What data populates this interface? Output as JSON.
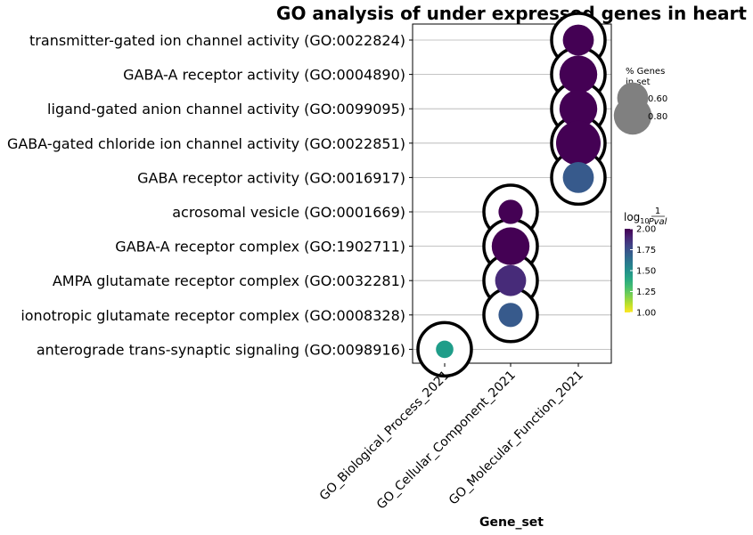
{
  "chart_data": {
    "type": "scatter",
    "title": "GO analysis of under expressed genes in heart",
    "xlabel": "Gene_set",
    "ylabel": "",
    "x_categories": [
      "GO_Biological_Process_2021",
      "GO_Cellular_Component_2021",
      "GO_Molecular_Function_2021"
    ],
    "y_categories": [
      "transmitter-gated ion channel activity (GO:0022824)",
      "GABA-A receptor activity (GO:0004890)",
      "ligand-gated anion channel activity (GO:0099095)",
      "GABA-gated chloride ion channel activity (GO:0022851)",
      "GABA receptor activity (GO:0016917)",
      "acrosomal vesicle (GO:0001669)",
      "GABA-A receptor complex (GO:1902711)",
      "AMPA glutamate receptor complex (GO:0032281)",
      "ionotropic glutamate receptor complex (GO:0008328)",
      "anterograde trans-synaptic signaling (GO:0098916)"
    ],
    "points": [
      {
        "x": "GO_Molecular_Function_2021",
        "y": "transmitter-gated ion channel activity (GO:0022824)",
        "pct_genes": 0.6,
        "color_value": 2.0,
        "highlighted": true
      },
      {
        "x": "GO_Molecular_Function_2021",
        "y": "GABA-A receptor activity (GO:0004890)",
        "pct_genes": 0.8,
        "color_value": 2.0,
        "highlighted": true
      },
      {
        "x": "GO_Molecular_Function_2021",
        "y": "ligand-gated anion channel activity (GO:0099095)",
        "pct_genes": 0.8,
        "color_value": 2.0,
        "highlighted": true
      },
      {
        "x": "GO_Molecular_Function_2021",
        "y": "GABA-gated chloride ion channel activity (GO:0022851)",
        "pct_genes": 1.0,
        "color_value": 2.0,
        "highlighted": true
      },
      {
        "x": "GO_Molecular_Function_2021",
        "y": "GABA receptor activity (GO:0016917)",
        "pct_genes": 0.6,
        "color_value": 1.72,
        "highlighted": true
      },
      {
        "x": "GO_Cellular_Component_2021",
        "y": "acrosomal vesicle (GO:0001669)",
        "pct_genes": 0.4,
        "color_value": 2.0,
        "highlighted": true
      },
      {
        "x": "GO_Cellular_Component_2021",
        "y": "GABA-A receptor complex (GO:1902711)",
        "pct_genes": 0.8,
        "color_value": 2.0,
        "highlighted": true
      },
      {
        "x": "GO_Cellular_Component_2021",
        "y": "AMPA glutamate receptor complex (GO:0032281)",
        "pct_genes": 0.6,
        "color_value": 1.88,
        "highlighted": true
      },
      {
        "x": "GO_Cellular_Component_2021",
        "y": "ionotropic glutamate receptor complex (GO:0008328)",
        "pct_genes": 0.4,
        "color_value": 1.72,
        "highlighted": true
      },
      {
        "x": "GO_Biological_Process_2021",
        "y": "anterograde trans-synaptic signaling (GO:0098916)",
        "pct_genes": 0.2,
        "color_value": 1.45,
        "highlighted": true
      }
    ],
    "size_legend": {
      "title_line1": "% Genes",
      "title_line2": "in set",
      "entries": [
        {
          "label": "0.60",
          "value": 0.6
        },
        {
          "label": "0.80",
          "value": 0.8
        }
      ],
      "placement": "right"
    },
    "colorbar": {
      "title_main": "log",
      "title_sub": "10",
      "title_num": "1",
      "title_den": "Pval",
      "range": [
        1.0,
        2.0
      ],
      "ticks": [
        {
          "label": "1.00",
          "value": 1.0
        },
        {
          "label": "1.25",
          "value": 1.25
        },
        {
          "label": "1.50",
          "value": 1.5
        },
        {
          "label": "1.75",
          "value": 1.75
        },
        {
          "label": "2.00",
          "value": 2.0
        }
      ],
      "colormap": "viridis_r",
      "placement": "right"
    },
    "grid": {
      "horizontal": true,
      "vertical": false
    },
    "colors": {
      "highlight_ring": "#000000",
      "grid": "#b0b0b0",
      "size_legend_marker": "#808080"
    }
  }
}
